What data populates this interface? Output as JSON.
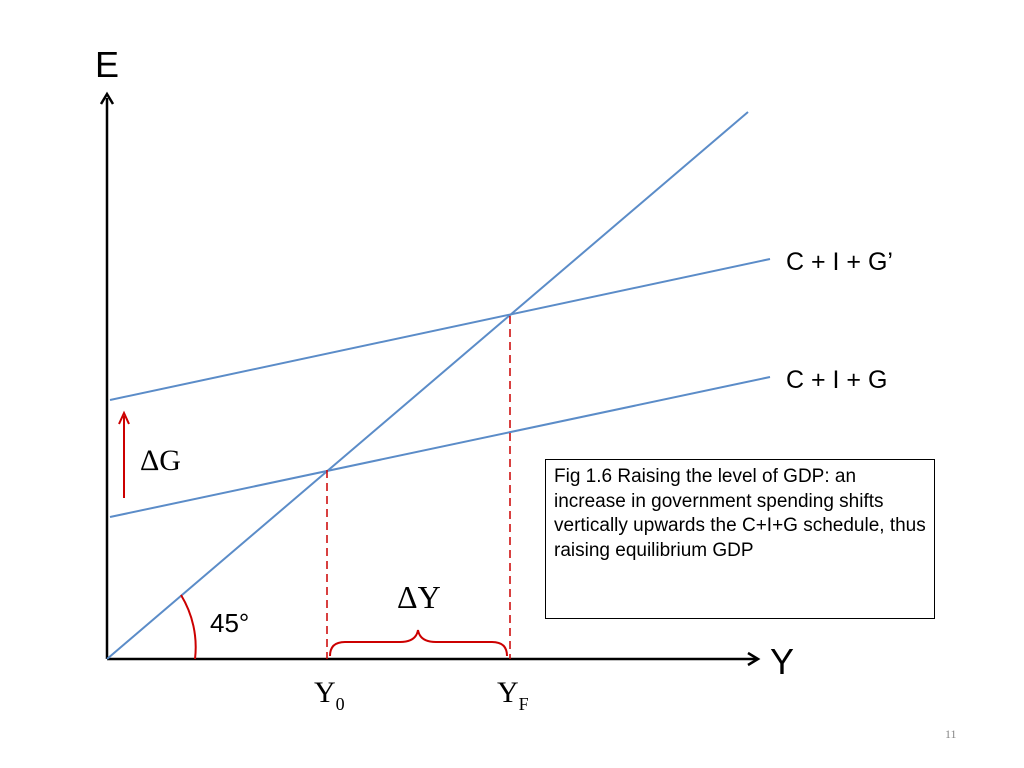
{
  "diagram": {
    "axis_y_label": "E",
    "axis_x_label": "Y",
    "curve_new_label": "C + I + G’",
    "curve_old_label": "C + I + G",
    "delta_g_label": "ΔG",
    "delta_y_label": "ΔY",
    "angle_label": "45°",
    "y0_main": "Y",
    "y0_sub": "0",
    "yf_main": "Y",
    "yf_sub": "F",
    "colors": {
      "line": "#5b8cc8",
      "annotation": "#cc0000",
      "axis": "#000000"
    }
  },
  "caption": "Fig 1.6  Raising the level of GDP: an increase in government spending shifts vertically upwards the C+I+G schedule, thus raising equilibrium GDP",
  "slide_number": "11"
}
